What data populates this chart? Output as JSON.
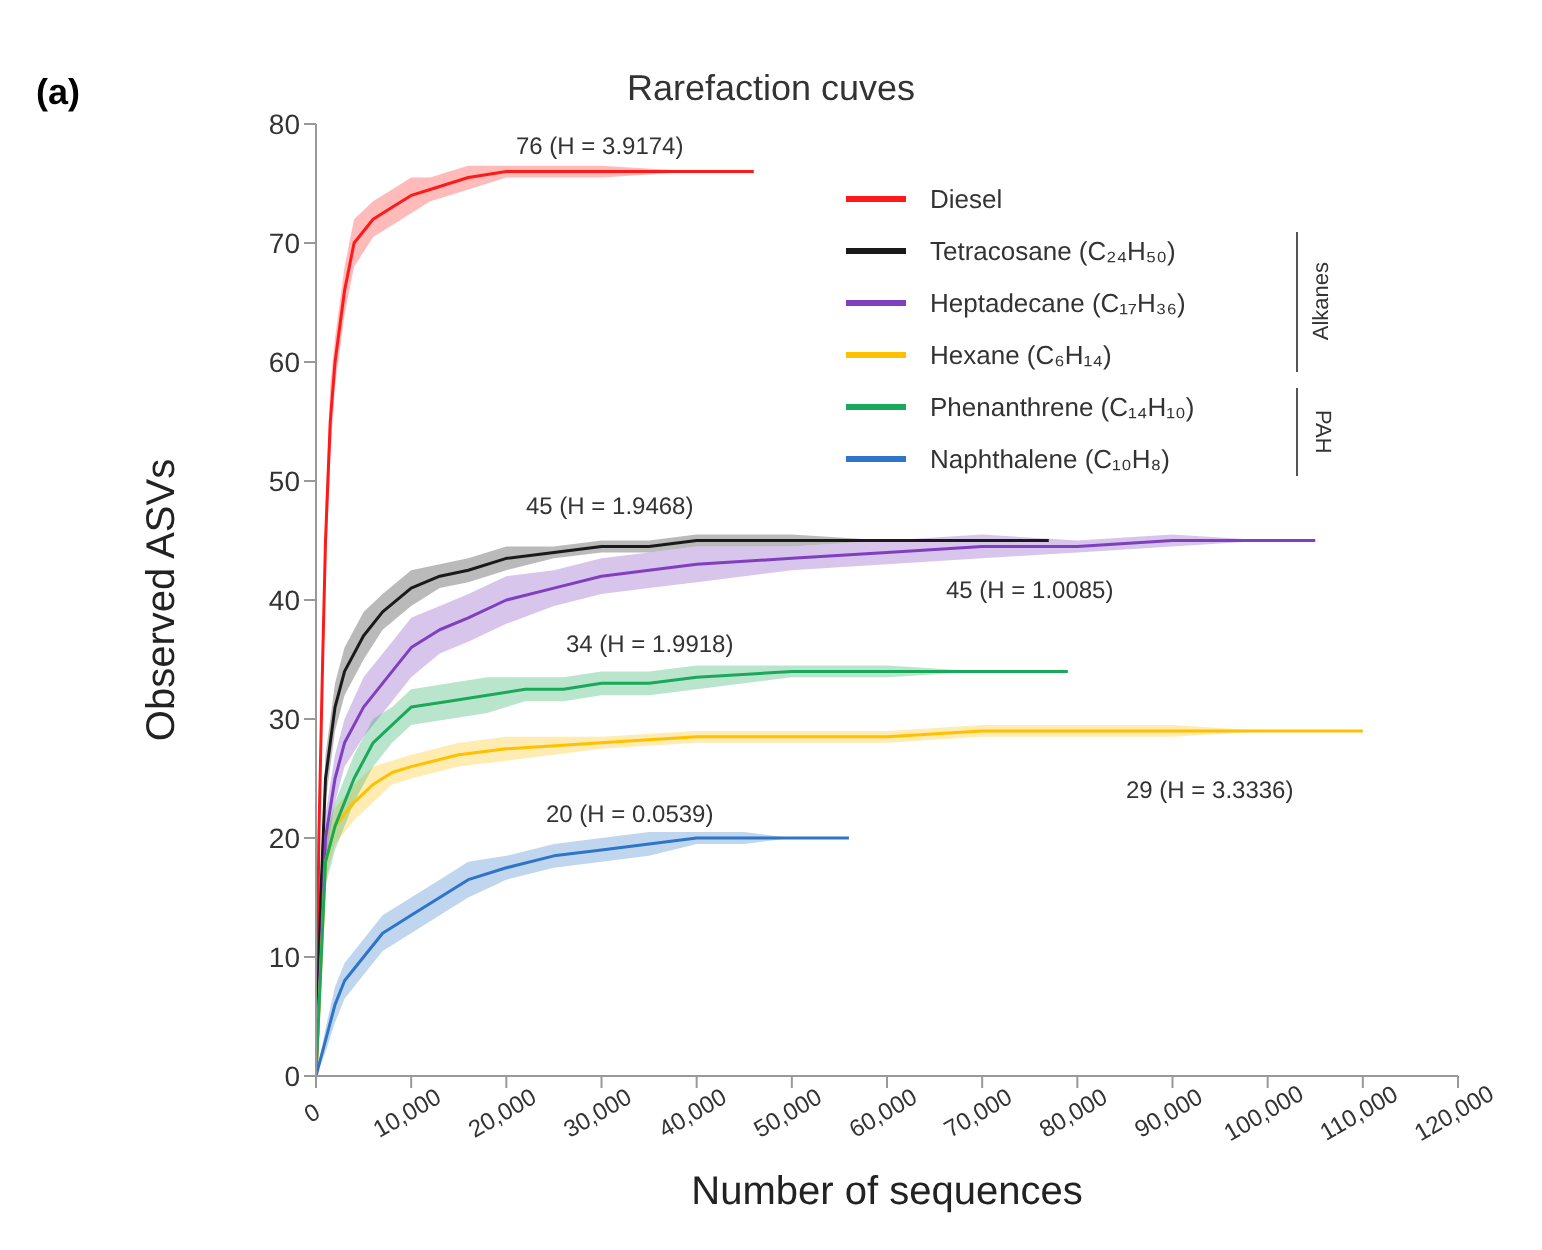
{
  "chart_data": {
    "type": "line",
    "title": "Rarefaction cuves",
    "xlabel": "Number of sequences",
    "ylabel": "Observed ASVs",
    "xlim": [
      0,
      120000
    ],
    "xticks": [
      0,
      {
        "value": 10000,
        "label": "10,000"
      },
      {
        "value": 20000,
        "label": "20,000"
      },
      {
        "value": 30000,
        "label": "30,000"
      },
      {
        "value": 40000,
        "label": "40,000"
      },
      {
        "value": 50000,
        "label": "50,000"
      },
      {
        "value": 60000,
        "label": "60,000"
      },
      {
        "value": 70000,
        "label": "70,000"
      },
      {
        "value": 80000,
        "label": "80,000"
      },
      {
        "value": 90000,
        "label": "90,000"
      },
      {
        "value": 100000,
        "label": "100,000"
      },
      {
        "value": 110000,
        "label": "110,000"
      },
      {
        "value": 120000,
        "label": "120,000"
      }
    ],
    "ylim": [
      0,
      80
    ],
    "yticks": [
      0,
      10,
      20,
      30,
      40,
      50,
      60,
      70,
      80
    ],
    "grid": false,
    "legend": "top right",
    "marker": "none",
    "line_style": "solid",
    "series": [
      {
        "name": "Diesel",
        "color": "#ff1a1a",
        "x": [
          0,
          300,
          700,
          1000,
          1500,
          2000,
          3000,
          4000,
          6000,
          8000,
          10000,
          12000,
          14000,
          16000,
          20000,
          25000,
          30000,
          40000,
          46000
        ],
        "values": [
          0,
          20,
          35,
          45,
          55,
          60,
          66,
          70,
          72,
          73,
          74,
          74.5,
          75,
          75.5,
          76,
          76,
          76,
          76,
          76
        ],
        "lower": [
          0,
          18,
          32,
          42,
          52,
          58,
          64,
          68,
          70.5,
          71.5,
          72.5,
          73.5,
          74,
          74.5,
          75.5,
          75.5,
          75.5,
          76,
          76
        ],
        "upper": [
          0,
          22,
          38,
          48,
          58,
          62,
          68,
          72,
          73.5,
          74.5,
          75.5,
          75.5,
          76,
          76.5,
          76.5,
          76.5,
          76.5,
          76,
          76
        ]
      },
      {
        "name": "Tetracosane (C₂₄H₅₀)",
        "color": "#1a1a1a",
        "x": [
          0,
          500,
          1000,
          2000,
          3000,
          5000,
          7000,
          10000,
          13000,
          16000,
          20000,
          25000,
          30000,
          35000,
          40000,
          50000,
          60000,
          70000,
          77000
        ],
        "values": [
          0,
          15,
          25,
          31,
          34,
          37,
          39,
          41,
          42,
          42.5,
          43.5,
          44,
          44.5,
          44.5,
          45,
          45,
          45,
          45,
          45
        ],
        "lower": [
          0,
          13,
          23,
          29,
          32,
          35,
          37.5,
          39.5,
          41,
          41.5,
          42.5,
          43.5,
          44,
          44,
          44.5,
          44.5,
          45,
          45,
          45
        ],
        "upper": [
          0,
          17,
          27,
          33,
          36,
          39,
          40.5,
          42.5,
          43,
          43.5,
          44.5,
          44.5,
          45,
          45,
          45.5,
          45.5,
          45,
          45,
          45
        ]
      },
      {
        "name": "Heptadecane (C₁₇H₃₆)",
        "color": "#7f3fbf",
        "x": [
          0,
          1000,
          2000,
          3000,
          5000,
          8000,
          10000,
          13000,
          16000,
          20000,
          25000,
          30000,
          35000,
          40000,
          50000,
          60000,
          70000,
          80000,
          90000,
          100000,
          105000
        ],
        "values": [
          0,
          20,
          25,
          28,
          31,
          34,
          36,
          37.5,
          38.5,
          40,
          41,
          42,
          42.5,
          43,
          43.5,
          44,
          44.5,
          44.5,
          45,
          45,
          45
        ],
        "lower": [
          0,
          18,
          23,
          26,
          28.5,
          31.5,
          33.5,
          35.5,
          36.5,
          38,
          39.5,
          40.5,
          41,
          41.5,
          42.5,
          43,
          43.5,
          44,
          44.5,
          45,
          45
        ],
        "upper": [
          0,
          22,
          27,
          30,
          33.5,
          36.5,
          38.5,
          39.5,
          40.5,
          42,
          42.5,
          43.5,
          44,
          44.5,
          44.5,
          45,
          45.5,
          45,
          45.5,
          45,
          45
        ]
      },
      {
        "name": "Hexane (C₆H₁₄)",
        "color": "#ffc000",
        "x": [
          0,
          1000,
          2000,
          4000,
          6000,
          8000,
          10000,
          15000,
          20000,
          30000,
          40000,
          50000,
          60000,
          70000,
          80000,
          90000,
          100000,
          110000
        ],
        "values": [
          0,
          18,
          21,
          23,
          24.5,
          25.5,
          26,
          27,
          27.5,
          28,
          28.5,
          28.5,
          28.5,
          29,
          29,
          29,
          29,
          29
        ],
        "lower": [
          0,
          16.5,
          19.5,
          21.5,
          23,
          24.5,
          25,
          26,
          26.5,
          27.5,
          28,
          28,
          28,
          28.5,
          28.5,
          28.5,
          29,
          29
        ],
        "upper": [
          0,
          19.5,
          22.5,
          24.5,
          26,
          26.5,
          27,
          28,
          28.5,
          28.5,
          29,
          29,
          29,
          29.5,
          29.5,
          29.5,
          29,
          29
        ]
      },
      {
        "name": "Phenanthrene (C₁₄H₁₀)",
        "color": "#1aa85a",
        "x": [
          0,
          1000,
          2000,
          4000,
          6000,
          8000,
          10000,
          14000,
          18000,
          22000,
          26000,
          30000,
          35000,
          40000,
          50000,
          60000,
          70000,
          79000
        ],
        "values": [
          0,
          18,
          21,
          25,
          28,
          29.5,
          31,
          31.5,
          32,
          32.5,
          32.5,
          33,
          33,
          33.5,
          34,
          34,
          34,
          34
        ],
        "lower": [
          0,
          16,
          19,
          23,
          26,
          28,
          29.5,
          30,
          30.5,
          31.5,
          31.5,
          32,
          32,
          32.5,
          33.5,
          33.5,
          34,
          34
        ],
        "upper": [
          0,
          20,
          23,
          27,
          30,
          31,
          32.5,
          33,
          33.5,
          33.5,
          33.5,
          34,
          34,
          34.5,
          34.5,
          34.5,
          34,
          34
        ]
      },
      {
        "name": "Naphthalene (C₁₀H₈)",
        "color": "#2e75c8",
        "x": [
          0,
          1000,
          2000,
          3000,
          5000,
          7000,
          10000,
          13000,
          16000,
          20000,
          25000,
          30000,
          35000,
          40000,
          45000,
          50000,
          56000
        ],
        "values": [
          0,
          3,
          6,
          8,
          10,
          12,
          13.5,
          15,
          16.5,
          17.5,
          18.5,
          19,
          19.5,
          20,
          20,
          20,
          20
        ],
        "lower": [
          0,
          2,
          4.5,
          6.5,
          8.5,
          10.5,
          12,
          13.5,
          15,
          16.5,
          17.5,
          18,
          18.5,
          19.5,
          19.5,
          20,
          20
        ],
        "upper": [
          0,
          4,
          7.5,
          9.5,
          11.5,
          13.5,
          15,
          16.5,
          18,
          18.5,
          19.5,
          20,
          20.5,
          20.5,
          20.5,
          20,
          20
        ]
      }
    ],
    "annotations": [
      "(a)",
      "Alkanes",
      "PAH",
      "76 (H = 3.9174)",
      "45 (H = 1.9468)",
      "45 (H = 1.0085)",
      "34 (H = 1.9918)",
      "29 (H = 3.3336)",
      "20 (H = 0.0539)"
    ]
  }
}
